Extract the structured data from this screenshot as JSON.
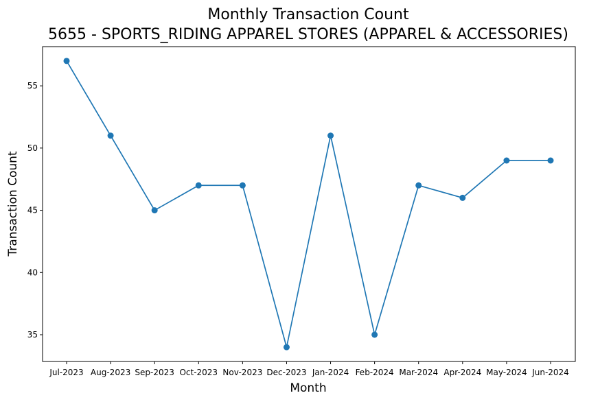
{
  "chart_data": {
    "type": "line",
    "title": "Monthly Transaction Count",
    "subtitle": "5655 - SPORTS_RIDING APPAREL STORES (APPAREL & ACCESSORIES)",
    "xlabel": "Month",
    "ylabel": "Transaction Count",
    "categories": [
      "Jul-2023",
      "Aug-2023",
      "Sep-2023",
      "Oct-2023",
      "Nov-2023",
      "Dec-2023",
      "Jan-2024",
      "Feb-2024",
      "Mar-2024",
      "Apr-2024",
      "May-2024",
      "Jun-2024"
    ],
    "series": [
      {
        "values": [
          57,
          51,
          45,
          47,
          47,
          34,
          51,
          35,
          47,
          46,
          49,
          49
        ],
        "color": "#1f77b4",
        "marker": "circle"
      }
    ],
    "ylim": [
      32.85,
      58.15
    ],
    "yticks": [
      35,
      40,
      45,
      50,
      55
    ],
    "grid": false,
    "legend": false
  }
}
